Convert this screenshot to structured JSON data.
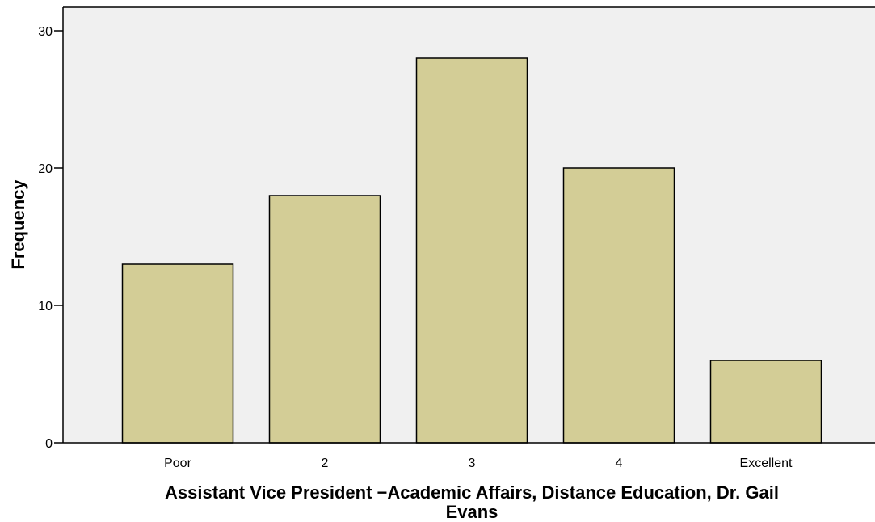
{
  "chart_data": {
    "type": "bar",
    "categories": [
      "Poor",
      "2",
      "3",
      "4",
      "Excellent"
    ],
    "values": [
      13,
      18,
      28,
      20,
      6
    ],
    "xlabel_line1": "Assistant Vice President −Academic Affairs, Distance Education, Dr. Gail",
    "xlabel_line2": "Evans",
    "ylabel": "Frequency",
    "ylim": [
      0,
      30
    ],
    "yticks": [
      "0",
      "10",
      "20",
      "30"
    ],
    "ytick_values": [
      0,
      10,
      20,
      30
    ],
    "grid": false,
    "colors": {
      "bar_fill": "#d3cd96",
      "bar_stroke": "#000000",
      "plot_background": "#f0f0f0"
    }
  }
}
